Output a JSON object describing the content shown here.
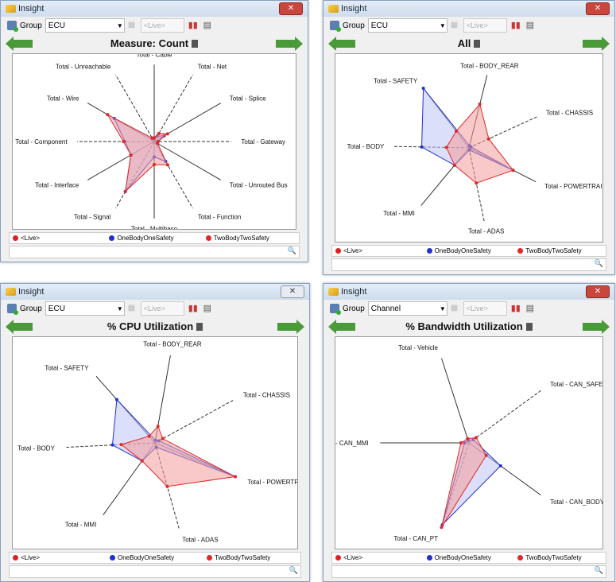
{
  "colors": {
    "live": "#e02020",
    "one": "#2030d0",
    "two": "#e02828",
    "oneFill": "#c0c4f4",
    "twoFill": "#f49a9a"
  },
  "windows": [
    {
      "title": "Insight",
      "group_label": "Group",
      "group_value": "ECU",
      "live_placeholder": "<Live>",
      "heading": "Measure: Count"
    },
    {
      "title": "Insight",
      "group_label": "Group",
      "group_value": "ECU",
      "live_placeholder": "<Live>",
      "heading": "All"
    },
    {
      "title": "Insight",
      "group_label": "Group",
      "group_value": "ECU",
      "live_placeholder": "<Live>",
      "heading": "% CPU Utilization"
    },
    {
      "title": "Insight",
      "group_label": "Group",
      "group_value": "Channel",
      "live_placeholder": "<Live>",
      "heading": "% Bandwidth Utilization"
    }
  ],
  "legend": [
    "<Live>",
    "OneBodyOneSafety",
    "TwoBodyTwoSafety"
  ],
  "chart_data": [
    {
      "type": "radar",
      "title": "Measure: Count",
      "axes": [
        "Total - Cable",
        "Total - Net",
        "Total - Splice",
        "Total - Gateway",
        "Total - Unrouted Bus",
        "Total - Function",
        "Total - Multibase",
        "Total - Signal",
        "Total - Interface",
        "Total - Component",
        "Total - Wire",
        "Total - Unreachable"
      ],
      "series": [
        {
          "name": "OneBodyOneSafety",
          "values": [
            0.04,
            0.08,
            0.15,
            0.05,
            0.05,
            0.3,
            0.2,
            0.75,
            0.35,
            0.38,
            0.6,
            0.05
          ]
        },
        {
          "name": "TwoBodyTwoSafety",
          "values": [
            0.05,
            0.12,
            0.2,
            0.05,
            0.05,
            0.35,
            0.3,
            0.75,
            0.35,
            0.4,
            0.7,
            0.05
          ]
        }
      ]
    },
    {
      "type": "radar",
      "title": "All",
      "axes": [
        "Total - BODY_REAR",
        "Total - CHASSIS",
        "Total - POWERTRAIN",
        "Total - ADAS",
        "Total - MMI",
        "Total - BODY",
        "Total - SAFETY"
      ],
      "series": [
        {
          "name": "OneBodyOneSafety",
          "values": [
            0.03,
            0.03,
            0.66,
            0.03,
            0.3,
            0.63,
            1.0
          ]
        },
        {
          "name": "TwoBodyTwoSafety",
          "values": [
            0.6,
            0.29,
            0.66,
            0.48,
            0.3,
            0.3,
            0.28
          ]
        }
      ]
    },
    {
      "type": "radar",
      "title": "% CPU Utilization",
      "axes": [
        "Total - BODY_REAR",
        "Total - CHASSIS",
        "Total - POWERTRAIN",
        "Total - ADAS",
        "Total - MMI",
        "Total - BODY",
        "Total - SAFETY"
      ],
      "series": [
        {
          "name": "OneBodyOneSafety",
          "values": [
            0.03,
            0.05,
            0.98,
            0.05,
            0.25,
            0.48,
            0.65
          ]
        },
        {
          "name": "TwoBodyTwoSafety",
          "values": [
            0.19,
            0.1,
            0.98,
            0.51,
            0.25,
            0.38,
            0.1
          ]
        }
      ]
    },
    {
      "type": "radar",
      "title": "% Bandwidth Utilization",
      "axes": [
        "Total - Vehicle",
        "Total - CAN_SAFETY",
        "Total - CAN_BODY",
        "Total - CAN_PT",
        "Total - CAN_MMI"
      ],
      "series": [
        {
          "name": "OneBodyOneSafety",
          "values": [
            0.03,
            0.06,
            0.44,
            0.97,
            0.05
          ]
        },
        {
          "name": "TwoBodyTwoSafety",
          "values": [
            0.05,
            0.1,
            0.24,
            1.0,
            0.09
          ]
        }
      ]
    }
  ]
}
